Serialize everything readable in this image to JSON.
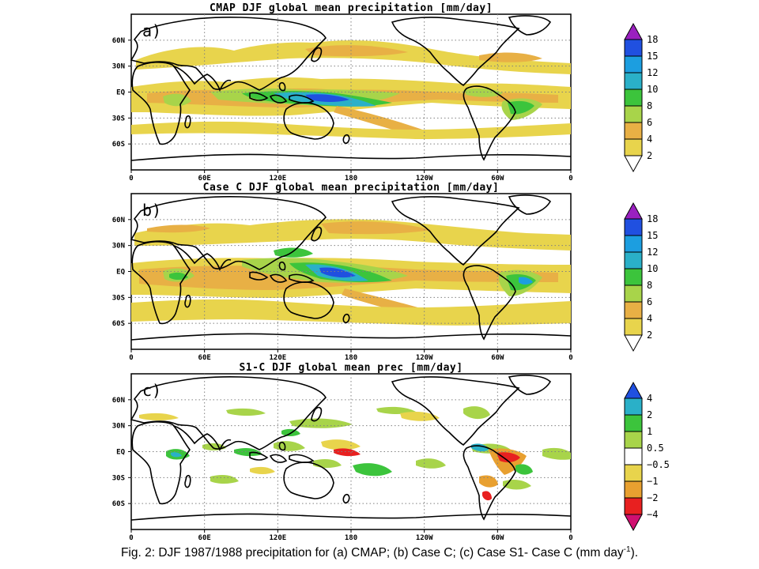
{
  "colors": {
    "lvl_2_4": "#e8d44c",
    "lvl_4_6": "#e8b045",
    "lvl_6_8": "#a8d44a",
    "lvl_8_10": "#3cc43c",
    "lvl_10_12": "#2ab0c8",
    "lvl_12_15": "#1c9ee0",
    "lvl_15_18": "#2050e0",
    "lvl_gt18": "#9a20c0",
    "d_lt_m4": "#d01070",
    "d_m4_m2": "#e82020",
    "d_m2_m1": "#e8a030",
    "d_m1_m05": "#e8d44c",
    "d_m05_05": "#ffffff",
    "d_05_1": "#a8d44a",
    "d_1_2": "#3cc43c",
    "d_2_4": "#2ab0c8",
    "d_gt4": "#2050e0",
    "coast": "#000000",
    "grid": "#808080"
  },
  "chart_data": [
    {
      "type": "heatmap",
      "panel": "a)",
      "title": "CMAP DJF global mean precipitation [mm/day]",
      "x_ticks": [
        "0",
        "60E",
        "120E",
        "180",
        "120W",
        "60W",
        "0"
      ],
      "y_ticks": [
        "60N",
        "30N",
        "EQ",
        "30S",
        "60S"
      ],
      "xlim": [
        0,
        360
      ],
      "ylim": [
        -90,
        90
      ],
      "grid": true,
      "colorbar": {
        "levels": [
          "2",
          "4",
          "6",
          "8",
          "10",
          "12",
          "15",
          "18"
        ],
        "placement": "right"
      }
    },
    {
      "type": "heatmap",
      "panel": "b)",
      "title": "Case C DJF global mean precipitation [mm/day]",
      "x_ticks": [
        "0",
        "60E",
        "120E",
        "180",
        "120W",
        "60W",
        "0"
      ],
      "y_ticks": [
        "60N",
        "30N",
        "EQ",
        "30S",
        "60S"
      ],
      "xlim": [
        0,
        360
      ],
      "ylim": [
        -90,
        90
      ],
      "grid": true,
      "colorbar": {
        "levels": [
          "2",
          "4",
          "6",
          "8",
          "10",
          "12",
          "15",
          "18"
        ],
        "placement": "right"
      }
    },
    {
      "type": "heatmap",
      "panel": "c)",
      "title": "S1-C DJF global mean prec [mm/day]",
      "x_ticks": [
        "0",
        "60E",
        "120E",
        "180",
        "120W",
        "60W",
        "0"
      ],
      "y_ticks": [
        "60N",
        "30N",
        "EQ",
        "30S",
        "60S"
      ],
      "xlim": [
        0,
        360
      ],
      "ylim": [
        -90,
        90
      ],
      "grid": true,
      "colorbar": {
        "levels": [
          "−4",
          "−2",
          "−1",
          "−0.5",
          "0.5",
          "1",
          "2",
          "4"
        ],
        "placement": "right"
      }
    }
  ],
  "caption": {
    "text": "Fig. 2: DJF 1987/1988 precipitation for (a) CMAP; (b) Case C; (c) Case S1- Case C (mm day",
    "sup": "-1",
    "end": ")."
  }
}
